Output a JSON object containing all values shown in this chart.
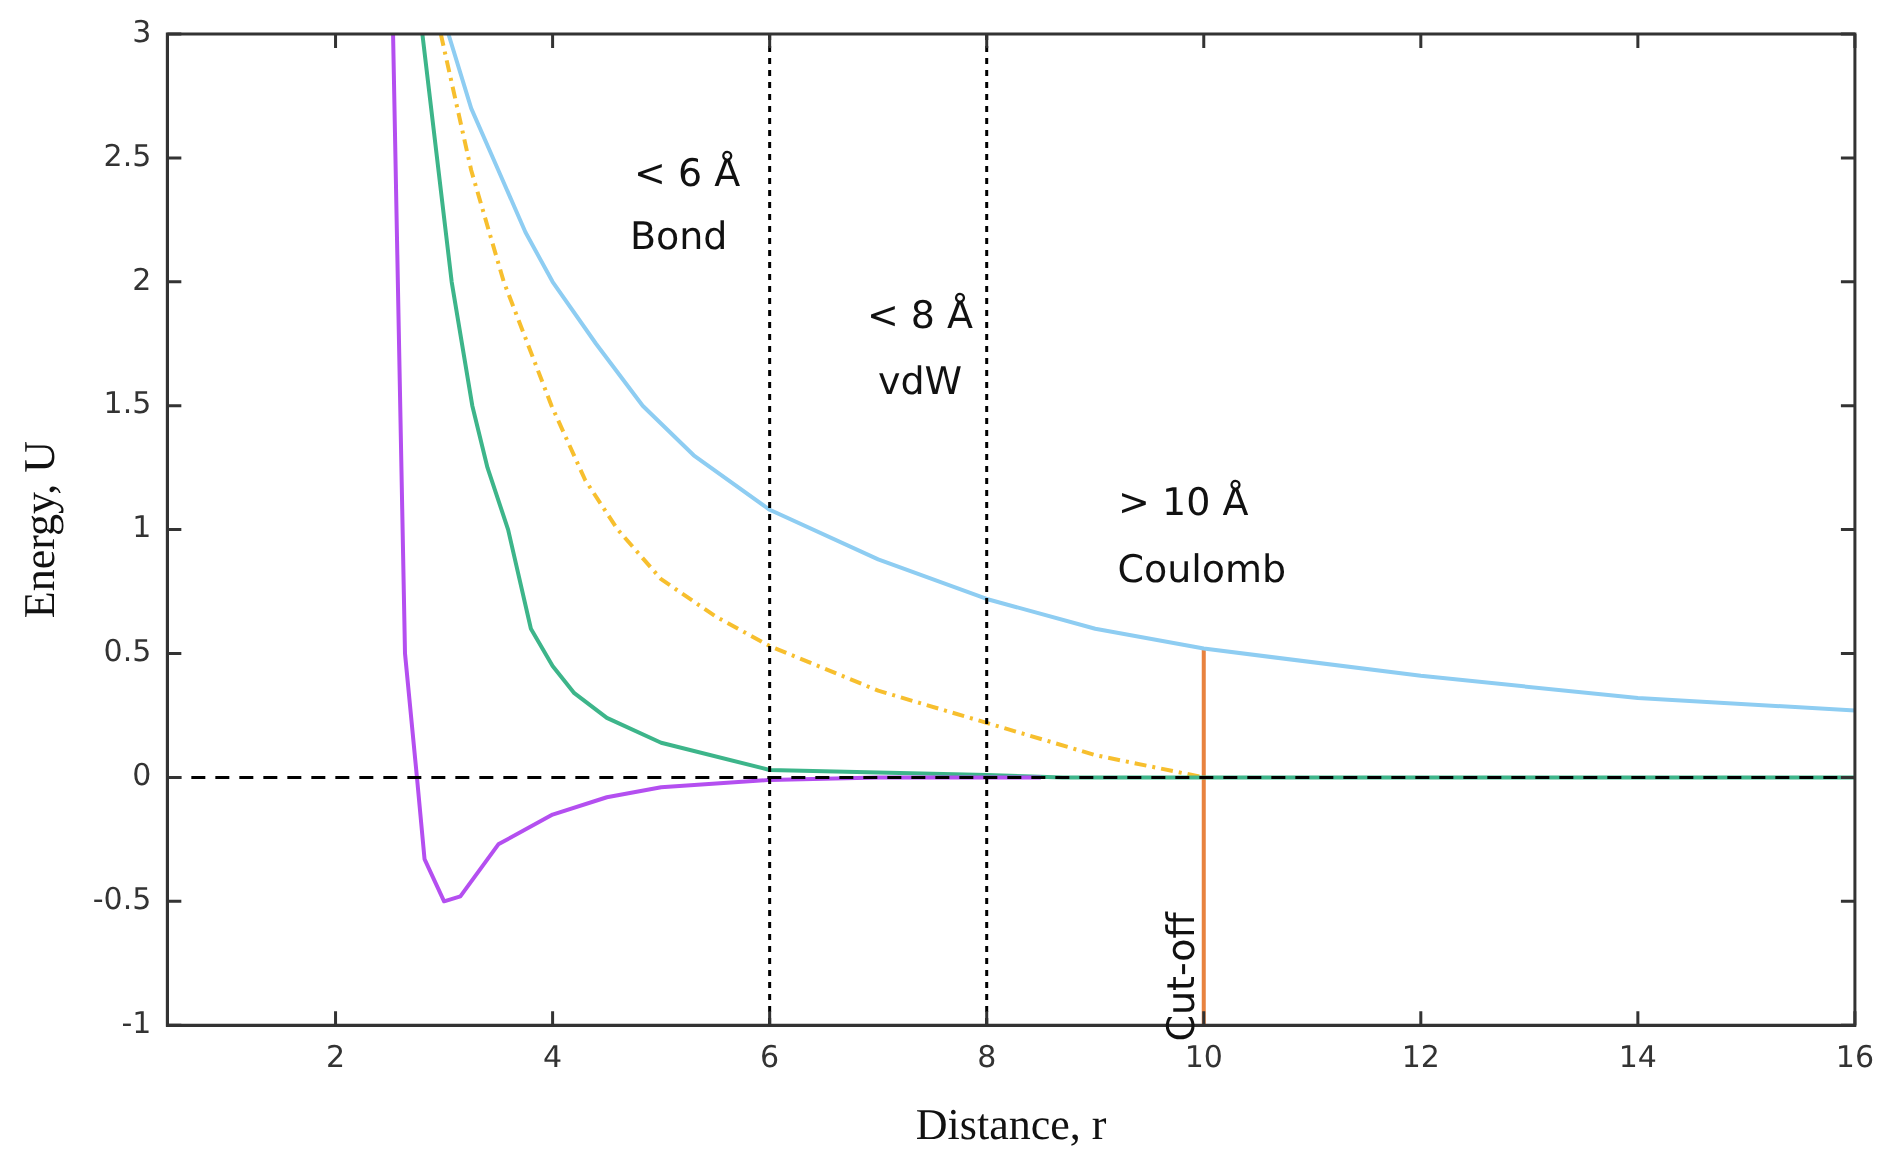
{
  "chart_data": {
    "type": "line",
    "xlabel": "Distance, r",
    "ylabel": "Energy, U",
    "xlim": [
      0.45,
      16
    ],
    "xticks": [
      2,
      4,
      6,
      8,
      10,
      12,
      14,
      16
    ],
    "ylim": [
      -1,
      3
    ],
    "yticks": [
      -1,
      -0.5,
      0,
      0.5,
      1,
      1.5,
      2,
      2.5,
      3
    ],
    "grid": false,
    "legend": false,
    "marker": "none",
    "series": [
      {
        "color": "#b44ff0",
        "x": [
          2.53,
          2.64,
          2.75,
          2.82,
          3.0,
          3.15,
          3.5,
          4,
          4.5,
          5,
          6,
          7,
          8.5
        ],
        "values": [
          3,
          0.5,
          0,
          -0.33,
          -0.5,
          -0.48,
          -0.27,
          -0.15,
          -0.08,
          -0.04,
          -0.01,
          0,
          0
        ]
      },
      {
        "color": "#3db58a",
        "x": [
          2.8,
          3.07,
          3.26,
          3.4,
          3.59,
          3.8,
          4,
          4.2,
          4.5,
          5,
          6,
          7,
          8,
          8.7,
          16
        ],
        "values": [
          3,
          2,
          1.5,
          1.25,
          1,
          0.6,
          0.45,
          0.34,
          0.24,
          0.14,
          0.03,
          0.02,
          0.01,
          0,
          0
        ]
      },
      {
        "color": "#f7bf2e",
        "line_style": "dashed",
        "x": [
          2.97,
          3.25,
          3.55,
          3.99,
          4.3,
          4.6,
          5,
          5.5,
          6,
          7,
          8,
          9,
          10
        ],
        "values": [
          3,
          2.45,
          2,
          1.5,
          1.2,
          1,
          0.8,
          0.65,
          0.53,
          0.35,
          0.22,
          0.09,
          0
        ]
      },
      {
        "color": "#8ecdf2",
        "x": [
          3.04,
          3.25,
          3.5,
          3.75,
          4,
          4.4,
          4.83,
          5.3,
          6,
          7,
          8,
          9,
          10,
          12,
          14,
          16
        ],
        "values": [
          3,
          2.7,
          2.45,
          2.2,
          2,
          1.75,
          1.5,
          1.3,
          1.08,
          0.88,
          0.72,
          0.6,
          0.52,
          0.41,
          0.32,
          0.27
        ]
      },
      {
        "name": "Cut-off",
        "color": "#e8823f",
        "x": [
          10,
          10
        ],
        "values": [
          -1,
          0.52
        ]
      }
    ],
    "ref_lines": [
      {
        "axis": "y",
        "value": 0,
        "color": "#000000",
        "line_style": "dashed"
      },
      {
        "axis": "x",
        "value": 6,
        "color": "#000000",
        "line_style": "dotted"
      },
      {
        "axis": "x",
        "value": 8,
        "color": "#000000",
        "line_style": "dotted"
      }
    ],
    "annotations": [
      "< 6 Å",
      "Bond",
      "< 8 Å",
      "vdW",
      "> 10 Å",
      "Coulomb"
    ]
  }
}
